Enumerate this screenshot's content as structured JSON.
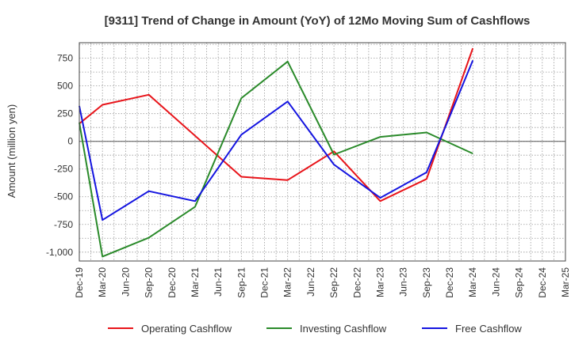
{
  "chart_data": {
    "type": "line",
    "title": "[9311]  Trend of Change in Amount (YoY) of 12Mo Moving Sum of Cashflows",
    "ylabel": "Amount (million yen)",
    "xlabel": "",
    "ylim": [
      -1080,
      890
    ],
    "yticks": [
      750,
      500,
      250,
      0,
      -250,
      -500,
      -750,
      -1000
    ],
    "ytick_labels": [
      "750",
      "500",
      "250",
      "0",
      "-250",
      "-500",
      "-750",
      "-1,000"
    ],
    "categories": [
      "Dec-19",
      "Mar-20",
      "Jun-20",
      "Sep-20",
      "Dec-20",
      "Mar-21",
      "Jun-21",
      "Sep-21",
      "Dec-21",
      "Mar-22",
      "Jun-22",
      "Sep-22",
      "Dec-22",
      "Mar-23",
      "Jun-23",
      "Sep-23",
      "Dec-23",
      "Mar-24",
      "Jun-24",
      "Sep-24",
      "Dec-24",
      "Mar-25"
    ],
    "grid": true,
    "legend_position": "bottom",
    "series": [
      {
        "name": "Operating Cashflow",
        "color": "#e8141a",
        "values": [
          160,
          330,
          null,
          420,
          null,
          null,
          null,
          -320,
          null,
          -350,
          null,
          -90,
          null,
          -540,
          null,
          -340,
          null,
          840,
          null,
          null,
          null,
          null
        ]
      },
      {
        "name": "Investing Cashflow",
        "color": "#2a8a2a",
        "values": [
          170,
          -1040,
          null,
          -870,
          null,
          -590,
          null,
          390,
          null,
          720,
          null,
          -120,
          null,
          40,
          null,
          80,
          null,
          -110,
          null,
          null,
          null,
          null
        ]
      },
      {
        "name": "Free Cashflow",
        "color": "#1414e0",
        "values": [
          320,
          -710,
          null,
          -450,
          null,
          -540,
          null,
          60,
          null,
          360,
          null,
          -210,
          null,
          -510,
          null,
          -280,
          null,
          730,
          null,
          null,
          null,
          null
        ]
      }
    ]
  }
}
